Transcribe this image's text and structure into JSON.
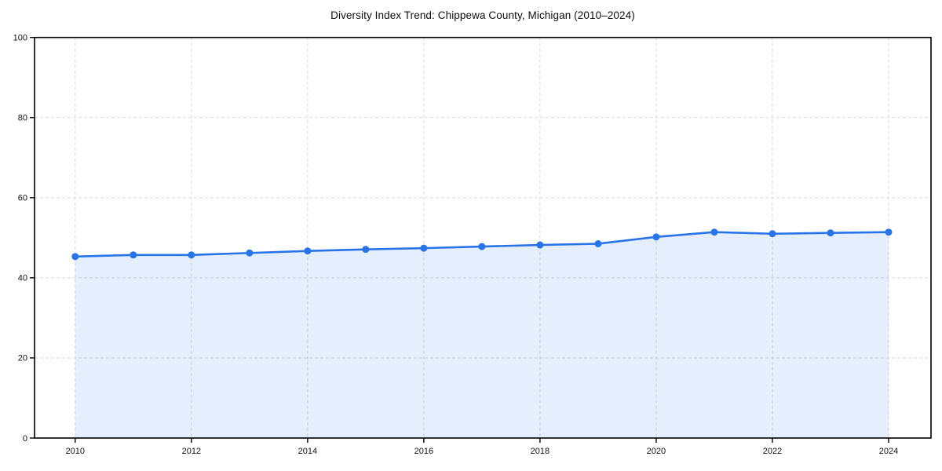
{
  "chart": {
    "title": "Diversity Index Trend: Chippewa County, Michigan (2010–2024)"
  },
  "chart_data": {
    "type": "area",
    "title": "Diversity Index Trend: Chippewa County, Michigan (2010–2024)",
    "series_name": "Diversity Index",
    "x": [
      2010,
      2011,
      2012,
      2013,
      2014,
      2015,
      2016,
      2017,
      2018,
      2019,
      2020,
      2021,
      2022,
      2023,
      2024
    ],
    "values": [
      45.3,
      45.7,
      45.7,
      46.2,
      46.7,
      47.1,
      47.4,
      47.8,
      48.2,
      48.5,
      50.2,
      51.4,
      51.0,
      51.2,
      51.4
    ],
    "xlabel": "",
    "ylabel": "",
    "xlim": [
      2009.3,
      2024.73
    ],
    "ylim": [
      0,
      100
    ],
    "xticks": [
      2010,
      2012,
      2014,
      2016,
      2018,
      2020,
      2022,
      2024
    ],
    "yticks": [
      0,
      20,
      40,
      60,
      80,
      100
    ],
    "grid": true,
    "grid_style": "dashed",
    "legend_position": "none",
    "marker": "circle",
    "colors": {
      "line": "#2674e8",
      "marker": "#2674e8",
      "fill_opacity": 0.12,
      "grid": "#d9d9d9",
      "axis": "#000000",
      "tick_text": "#111111",
      "title_text": "#0d0d0d",
      "background": "#ffffff"
    }
  }
}
